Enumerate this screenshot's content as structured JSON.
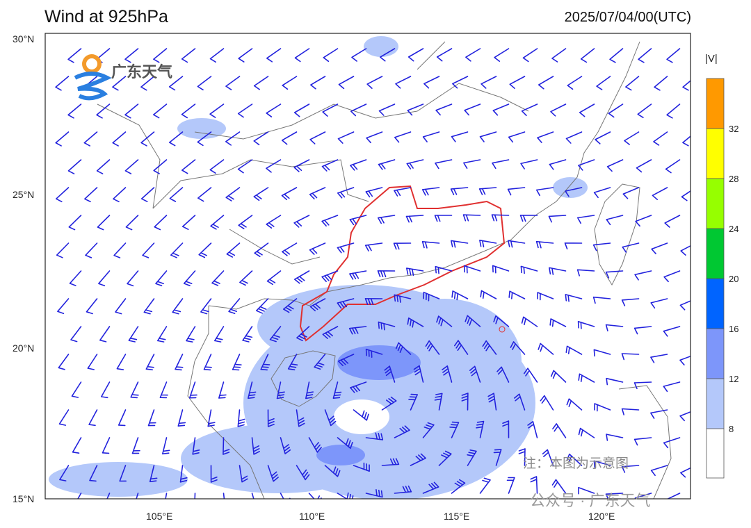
{
  "title": "Wind at 925hPa",
  "valid_time": "2025/07/04/00(UTC)",
  "map": {
    "lon_range": [
      101,
      123
    ],
    "lat_range": [
      15,
      30
    ],
    "lon_ticks": [
      "105°E",
      "110°E",
      "115°E",
      "120°E"
    ],
    "lat_ticks": [
      "30°N",
      "25°N",
      "20°N",
      "15°N"
    ],
    "highlighted_region_color": "#e03030",
    "barb_color": "#2222dd"
  },
  "colorbar": {
    "label": "|V|",
    "levels": [
      "8",
      "12",
      "16",
      "20",
      "24",
      "28",
      "32"
    ],
    "colors": [
      "#ffffff",
      "#b4c8fa",
      "#7d96fa",
      "#0064ff",
      "#00c832",
      "#96ff00",
      "#ffff00",
      "#ff9900"
    ]
  },
  "logo": {
    "text": "广东天气"
  },
  "note": "注：本图为示意图",
  "watermark": "公众号 · 广东天气"
}
